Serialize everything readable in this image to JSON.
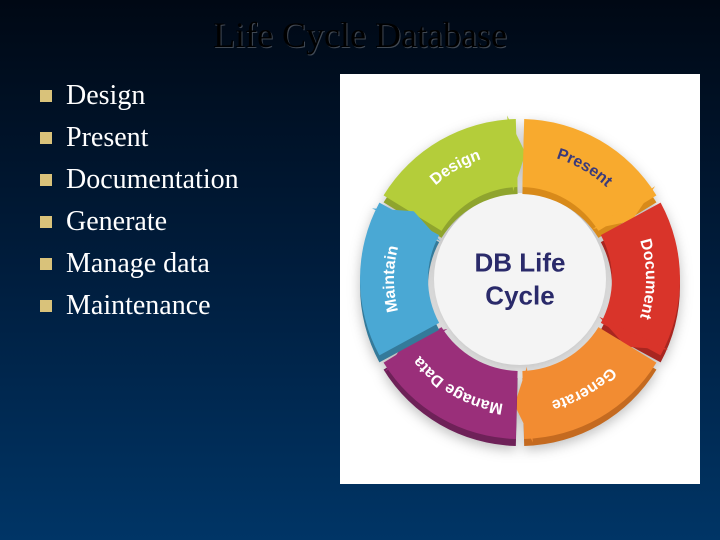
{
  "title": "Life Cycle Database",
  "bullets": [
    {
      "label": "Design"
    },
    {
      "label": "Present"
    },
    {
      "label": "Documentation"
    },
    {
      "label": "Generate"
    },
    {
      "label": "Manage data"
    },
    {
      "label": "Maintenance"
    }
  ],
  "bullet_style": {
    "marker_color": "#d9c27a",
    "text_color": "#ffffff",
    "font_size_pt": 21
  },
  "diagram": {
    "type": "ring-cycle",
    "center_text_line1": "DB Life",
    "center_text_line2": "Cycle",
    "center_text_color": "#2a2a6a",
    "center_font_size_pt": 20,
    "background_color": "#ffffff",
    "outer_radius": 160,
    "inner_radius": 92,
    "segments": [
      {
        "label": "Design",
        "fill": "#b4cd3a",
        "text_color": "#ffffff",
        "dark": "#8fa42e"
      },
      {
        "label": "Present",
        "fill": "#f8aa2e",
        "text_color": "#3a3a7a",
        "dark": "#d88a1a"
      },
      {
        "label": "Document",
        "fill": "#d9342a",
        "text_color": "#ffffff",
        "dark": "#a82620"
      },
      {
        "label": "Generate",
        "fill": "#f28c32",
        "text_color": "#ffffff",
        "dark": "#c46a20"
      },
      {
        "label": "Manage Data",
        "fill": "#9a2f7a",
        "text_color": "#ffffff",
        "dark": "#6e2158"
      },
      {
        "label": "Maintain",
        "fill": "#4aa8d4",
        "text_color": "#ffffff",
        "dark": "#347a9a"
      }
    ]
  },
  "slide_background": {
    "top_color": "#000814",
    "bottom_color": "#003566"
  }
}
